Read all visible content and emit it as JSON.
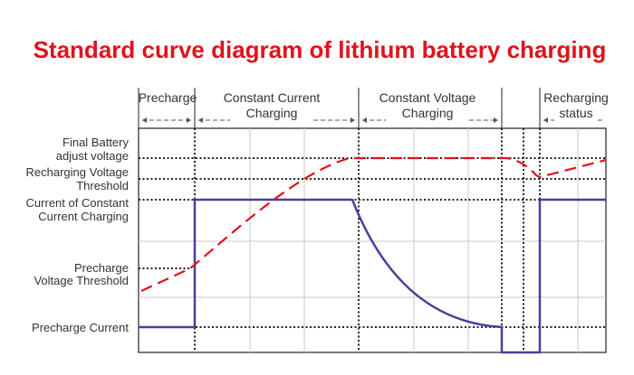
{
  "title": "Standard curve diagram of lithium battery charging",
  "phases": {
    "precharge": "Precharge",
    "cc_line1": "Constant Current",
    "cc_line2": "Charging",
    "cv_line1": "Constant Voltage",
    "cv_line2": "Charging",
    "recharge_line1": "Recharging",
    "recharge_line2": "status"
  },
  "levels": {
    "final_line1": "Final Battery",
    "final_line2": "adjust voltage",
    "recharge_line1": "Recharging Voltage",
    "recharge_line2": "Threshold",
    "cc_line1": "Current of Constant",
    "cc_line2": "Current Charging",
    "pv_line1": "Precharge",
    "pv_line2": "Voltage Threshold",
    "pc": "Precharge Current"
  },
  "colors": {
    "title": "#e0121b",
    "voltage": "#e0121b",
    "current": "#4a3f9c",
    "grid": "#c8c8c8",
    "axis": "#222222"
  }
}
